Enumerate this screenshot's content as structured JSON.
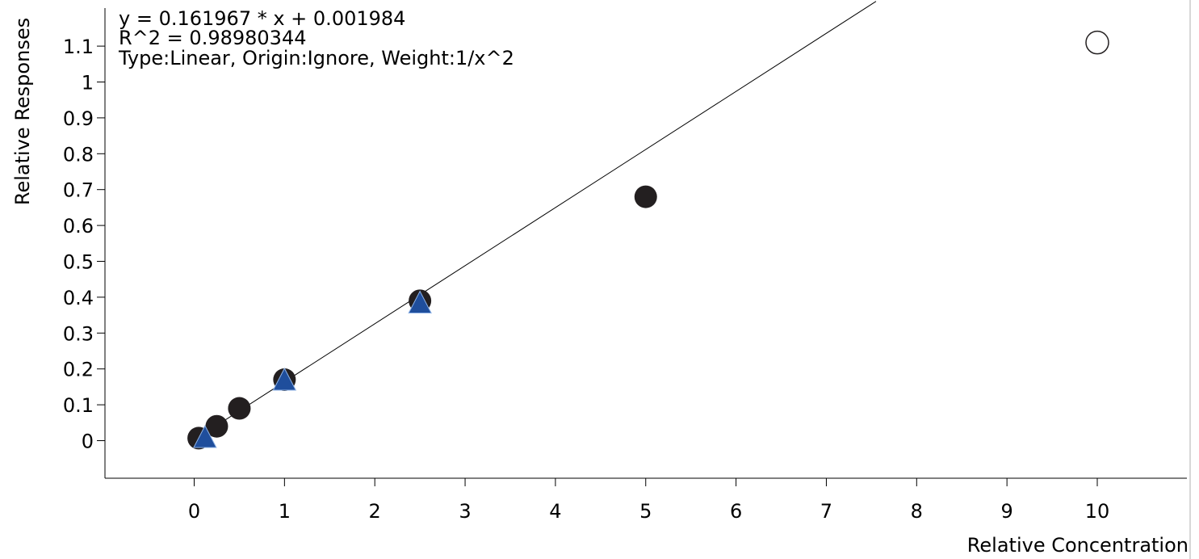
{
  "chart_data": {
    "type": "scatter",
    "title": "",
    "xlabel": "Relative Concentration",
    "ylabel": "Relative Responses",
    "xlim": [
      -0.95,
      11.1
    ],
    "ylim": [
      -0.1,
      1.25
    ],
    "x_ticks": [
      0,
      1,
      2,
      3,
      4,
      5,
      6,
      7,
      8,
      9,
      10
    ],
    "x_tick_labels": [
      "0",
      "1",
      "2",
      "3",
      "4",
      "5",
      "6",
      "7",
      "8",
      "9",
      "10"
    ],
    "y_ticks": [
      0,
      0.1,
      0.2,
      0.3,
      0.4,
      0.5,
      0.6,
      0.7,
      0.8,
      0.9,
      1,
      1.1
    ],
    "y_tick_labels": [
      "0",
      "0.1",
      "0.2",
      "0.3",
      "0.4",
      "0.5",
      "0.6",
      "0.7",
      "0.8",
      "0.9",
      "1",
      "1.1"
    ],
    "grid": false,
    "annotations": [
      "y = 0.161967 * x  + 0.001984",
      "R^2 = 0.98980344",
      "Type:Linear, Origin:Ignore, Weight:1/x^2"
    ],
    "fit_line": {
      "slope": 0.161967,
      "intercept": 0.001984,
      "x_range": [
        0.05,
        7.55
      ]
    },
    "series": [
      {
        "marker": "circle-filled",
        "color": "#231f20",
        "points": [
          {
            "x": 0.05,
            "y": 0.007
          },
          {
            "x": 0.25,
            "y": 0.04
          },
          {
            "x": 0.5,
            "y": 0.09
          },
          {
            "x": 1,
            "y": 0.17
          },
          {
            "x": 2.5,
            "y": 0.39
          },
          {
            "x": 5,
            "y": 0.68
          }
        ]
      },
      {
        "marker": "circle-open",
        "color": "#231f20",
        "points": [
          {
            "x": 10,
            "y": 1.11
          }
        ]
      },
      {
        "marker": "triangle",
        "color": "#1f4e9c",
        "points": [
          {
            "x": 0.12,
            "y": 0.01
          },
          {
            "x": 1,
            "y": 0.17
          },
          {
            "x": 2.5,
            "y": 0.385
          }
        ]
      }
    ]
  }
}
